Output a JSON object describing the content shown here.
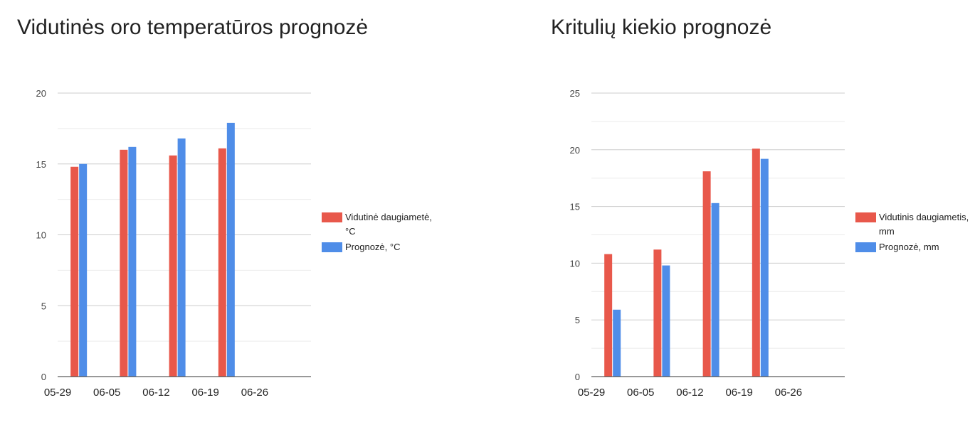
{
  "charts": [
    {
      "id": "temp",
      "title": "Vidutinės oro temperatūros prognozė"
    },
    {
      "id": "precip",
      "title": "Kritulių kiekio prognozė"
    }
  ],
  "chart_data": [
    {
      "type": "bar",
      "title": "Vidutinės oro temperatūros prognozė",
      "x_ticks": [
        "05-29",
        "06-05",
        "06-12",
        "06-19",
        "06-26"
      ],
      "x_range": [
        "05-29",
        "07-04"
      ],
      "groups_x": [
        "06-01",
        "06-08",
        "06-15",
        "06-22"
      ],
      "ylim": [
        0,
        20
      ],
      "y_ticks": [
        0,
        5,
        10,
        15,
        20
      ],
      "grid": true,
      "legend_position": "right",
      "series": [
        {
          "name": "Vidutinė daugiametė, °C",
          "color": "#e8584b",
          "values": [
            14.8,
            16.0,
            15.6,
            16.1
          ]
        },
        {
          "name": "Prognozė, °C",
          "color": "#4f8de8",
          "values": [
            15.0,
            16.2,
            16.8,
            17.9
          ]
        }
      ]
    },
    {
      "type": "bar",
      "title": "Kritulių kiekio prognozė",
      "x_ticks": [
        "05-29",
        "06-05",
        "06-12",
        "06-19",
        "06-26"
      ],
      "x_range": [
        "05-29",
        "07-04"
      ],
      "groups_x": [
        "06-01",
        "06-08",
        "06-15",
        "06-22"
      ],
      "ylim": [
        0,
        25
      ],
      "y_ticks": [
        0,
        5,
        10,
        15,
        20,
        25
      ],
      "grid": true,
      "legend_position": "right",
      "series": [
        {
          "name": "Vidutinis daugiametis, mm",
          "color": "#e8584b",
          "values": [
            10.8,
            11.2,
            18.1,
            20.1
          ]
        },
        {
          "name": "Prognozė, mm",
          "color": "#4f8de8",
          "values": [
            5.9,
            9.8,
            15.3,
            19.2
          ]
        }
      ]
    }
  ]
}
